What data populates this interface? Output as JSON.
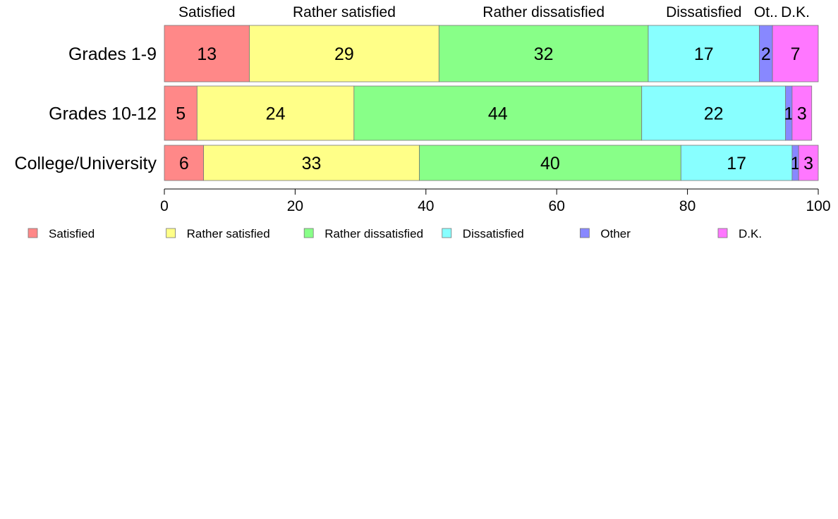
{
  "chart_data": {
    "type": "bar",
    "orientation": "horizontal",
    "stacked": true,
    "categories": [
      "Grades 1-9",
      "Grades 10-12",
      "College/University"
    ],
    "series": [
      {
        "name": "Satisfied",
        "color": "#ff8888",
        "values": [
          13,
          5,
          6
        ],
        "labels": [
          "13",
          "5",
          "6"
        ]
      },
      {
        "name": "Rather satisfied",
        "color": "#ffff88",
        "values": [
          29,
          24,
          33
        ],
        "labels": [
          "29",
          "24",
          "33"
        ]
      },
      {
        "name": "Rather dissatisfied",
        "color": "#88ff88",
        "values": [
          32,
          44,
          40
        ],
        "labels": [
          "32",
          "44",
          "40"
        ]
      },
      {
        "name": "Dissatisfied",
        "color": "#88ffff",
        "values": [
          17,
          22,
          17
        ],
        "labels": [
          "17",
          "22",
          "17"
        ]
      },
      {
        "name": "Other",
        "color": "#8888ff",
        "values": [
          2,
          1,
          1
        ],
        "labels": [
          "2",
          "1",
          "1"
        ]
      },
      {
        "name": "D.K.",
        "color": "#ff77ff",
        "values": [
          7,
          3,
          3
        ],
        "labels": [
          "7",
          "3",
          "3"
        ]
      }
    ],
    "top_labels": [
      "Satisfied",
      "Rather satisfied",
      "Rather dissatisfied",
      "Dissatisfied",
      "Ot..",
      "D.K."
    ],
    "xlim": [
      0,
      100
    ],
    "xticks": [
      "0",
      "20",
      "40",
      "60",
      "80",
      "100"
    ],
    "grid": false,
    "legend_position": "bottom"
  }
}
